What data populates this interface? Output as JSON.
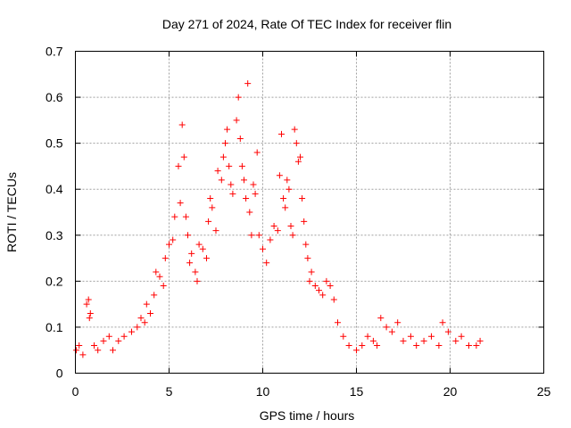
{
  "chart_data": {
    "type": "scatter",
    "title": "Day 271 of 2024, Rate Of TEC Index for receiver flin",
    "xlabel": "GPS time / hours",
    "ylabel": "ROTI / TECUs",
    "xlim": [
      0,
      25
    ],
    "ylim": [
      0,
      0.7
    ],
    "x_ticks": [
      0,
      5,
      10,
      15,
      20,
      25
    ],
    "x_tick_labels": [
      "0",
      "5",
      "10",
      "15",
      "20",
      "25"
    ],
    "y_ticks": [
      0,
      0.1,
      0.2,
      0.3,
      0.4,
      0.5,
      0.6,
      0.7
    ],
    "y_tick_labels": [
      "0",
      "0.1",
      "0.2",
      "0.3",
      "0.4",
      "0.5",
      "0.6",
      "0.7"
    ],
    "grid": true,
    "marker": "+",
    "marker_color": "#ff0000",
    "series": [
      {
        "name": "ROTI",
        "x": [
          0.05,
          0.2,
          0.4,
          0.6,
          0.7,
          0.75,
          0.8,
          1.0,
          1.2,
          1.5,
          1.8,
          2.0,
          2.3,
          2.6,
          3.0,
          3.3,
          3.5,
          3.7,
          3.8,
          4.0,
          4.2,
          4.3,
          4.5,
          4.7,
          4.8,
          5.0,
          5.2,
          5.3,
          5.5,
          5.6,
          5.7,
          5.8,
          5.9,
          6.0,
          6.1,
          6.2,
          6.4,
          6.5,
          6.6,
          6.8,
          7.0,
          7.1,
          7.2,
          7.3,
          7.5,
          7.6,
          7.8,
          7.9,
          8.0,
          8.1,
          8.2,
          8.3,
          8.4,
          8.6,
          8.7,
          8.8,
          8.9,
          9.0,
          9.1,
          9.2,
          9.3,
          9.4,
          9.5,
          9.6,
          9.7,
          9.8,
          10.0,
          10.2,
          10.4,
          10.6,
          10.8,
          10.9,
          11.0,
          11.1,
          11.2,
          11.3,
          11.4,
          11.5,
          11.6,
          11.7,
          11.8,
          11.9,
          12.0,
          12.1,
          12.2,
          12.3,
          12.4,
          12.5,
          12.6,
          12.8,
          13.0,
          13.2,
          13.4,
          13.6,
          13.8,
          14.0,
          14.3,
          14.6,
          15.0,
          15.3,
          15.6,
          15.9,
          16.1,
          16.3,
          16.6,
          16.9,
          17.2,
          17.5,
          17.9,
          18.2,
          18.6,
          19.0,
          19.4,
          19.6,
          19.9,
          20.3,
          20.6,
          21.0,
          21.4,
          21.6
        ],
        "y": [
          0.05,
          0.06,
          0.04,
          0.15,
          0.16,
          0.12,
          0.13,
          0.06,
          0.05,
          0.07,
          0.08,
          0.05,
          0.07,
          0.08,
          0.09,
          0.1,
          0.12,
          0.11,
          0.15,
          0.13,
          0.17,
          0.22,
          0.21,
          0.19,
          0.25,
          0.28,
          0.29,
          0.34,
          0.45,
          0.37,
          0.54,
          0.47,
          0.34,
          0.3,
          0.24,
          0.26,
          0.22,
          0.2,
          0.28,
          0.27,
          0.25,
          0.33,
          0.38,
          0.36,
          0.31,
          0.44,
          0.42,
          0.47,
          0.5,
          0.53,
          0.45,
          0.41,
          0.39,
          0.55,
          0.6,
          0.51,
          0.45,
          0.42,
          0.38,
          0.63,
          0.35,
          0.3,
          0.41,
          0.39,
          0.48,
          0.3,
          0.27,
          0.24,
          0.29,
          0.32,
          0.31,
          0.43,
          0.52,
          0.38,
          0.36,
          0.42,
          0.4,
          0.32,
          0.3,
          0.53,
          0.5,
          0.46,
          0.47,
          0.38,
          0.33,
          0.28,
          0.25,
          0.2,
          0.22,
          0.19,
          0.18,
          0.17,
          0.2,
          0.19,
          0.16,
          0.11,
          0.08,
          0.06,
          0.05,
          0.06,
          0.08,
          0.07,
          0.06,
          0.12,
          0.1,
          0.09,
          0.11,
          0.07,
          0.08,
          0.06,
          0.07,
          0.08,
          0.06,
          0.11,
          0.09,
          0.07,
          0.08,
          0.06,
          0.06,
          0.07
        ]
      }
    ]
  }
}
